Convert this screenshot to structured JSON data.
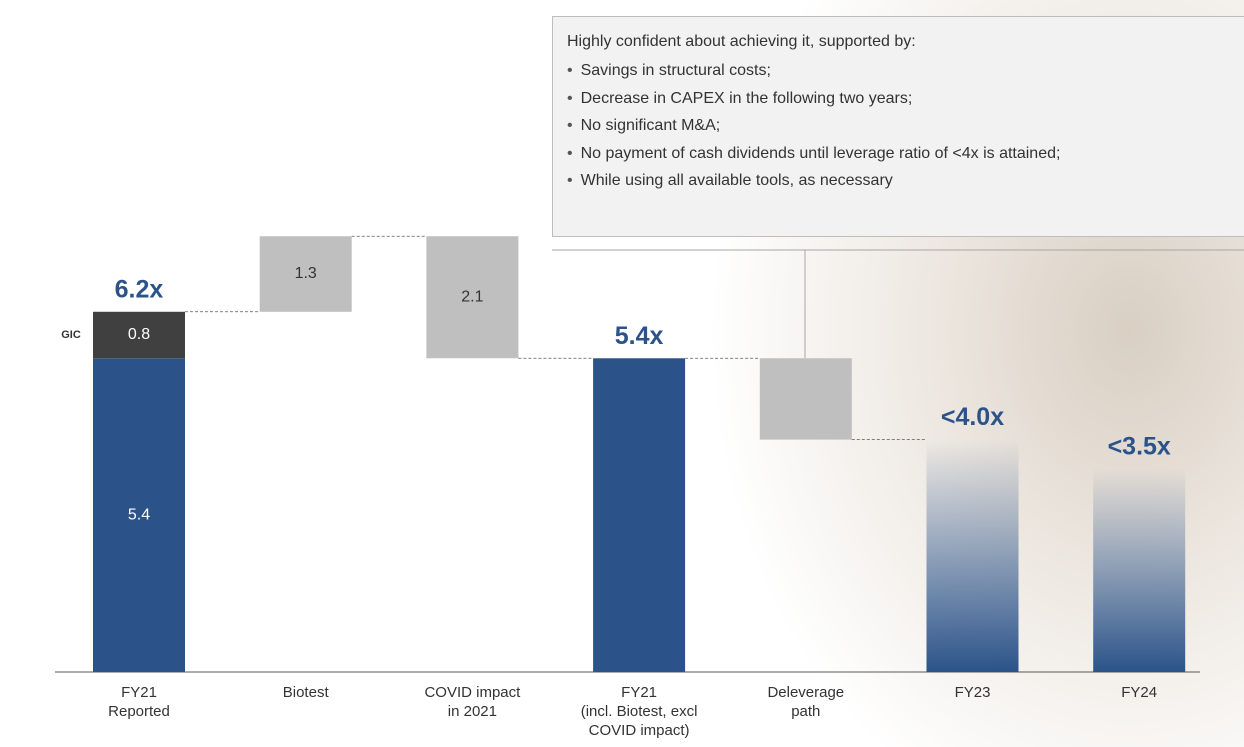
{
  "chart_data": {
    "type": "waterfall",
    "ylim": [
      0,
      8
    ],
    "bars": [
      {
        "label": "FY21\nReported",
        "kind": "total",
        "total": 6.2,
        "total_label": "6.2x",
        "parts": [
          {
            "value": 5.4,
            "label": "5.4",
            "color": "#2b5389"
          },
          {
            "name": "GIC",
            "value": 0.8,
            "label": "0.8",
            "color": "#404040"
          }
        ]
      },
      {
        "label": "Biotest",
        "kind": "up",
        "value": 1.3,
        "value_label": "1.3",
        "color": "#bfbfbf"
      },
      {
        "label": "COVID impact\nin 2021",
        "kind": "down",
        "value": 2.1,
        "value_label": "2.1",
        "color": "#bfbfbf"
      },
      {
        "label": "FY21\n(incl. Biotest, excl\nCOVID impact)",
        "kind": "total",
        "total": 5.4,
        "total_label": "5.4x",
        "parts": [
          {
            "value": 5.4,
            "color": "#2b5389"
          }
        ]
      },
      {
        "label": "Deleverage\npath",
        "kind": "down",
        "value": 1.4,
        "color": "#bfbfbf"
      },
      {
        "label": "FY23",
        "kind": "target",
        "value": 4.0,
        "value_label": "<4.0x",
        "color": "#2b5389",
        "gradient": true
      },
      {
        "label": "FY24",
        "kind": "target",
        "value": 3.5,
        "value_label": "<3.5x",
        "color": "#2b5389",
        "gradient": true
      }
    ],
    "note": {
      "heading": "Highly confident about achieving it, supported by:",
      "bullets": [
        "Savings in structural costs;",
        "Decrease in CAPEX in the following two years;",
        "No significant M&A;",
        "No payment of cash dividends until leverage ratio of <4x is attained;",
        "While using all available tools, as necessary"
      ]
    }
  }
}
